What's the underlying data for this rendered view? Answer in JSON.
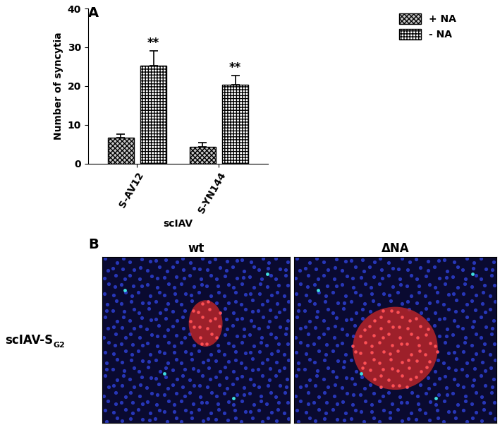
{
  "chart_data": {
    "type": "bar",
    "panel_label": "A",
    "x_label": "scIAV",
    "y_label": "Number of syncytia",
    "categories": [
      "S-AV12",
      "S-YN144"
    ],
    "series": [
      {
        "name": "+ NA",
        "color": "#c8c8c8",
        "values": [
          6.7,
          4.4
        ],
        "errors": [
          0.9,
          1.1
        ]
      },
      {
        "name": "- NA",
        "color": "#ffffff",
        "values": [
          25.3,
          20.3
        ],
        "errors": [
          3.8,
          2.4
        ]
      }
    ],
    "annotations": [
      {
        "text": "**",
        "category": "S-AV12",
        "series": "- NA"
      },
      {
        "text": "**",
        "category": "S-YN144",
        "series": "- NA"
      }
    ],
    "ylim": [
      0,
      40
    ],
    "yticks": [
      0,
      10,
      20,
      30,
      40
    ],
    "legend": "upper right",
    "grid": false
  },
  "images": {
    "panel_label": "B",
    "row_label": {
      "text": "scIAV-S",
      "subscript": "G2"
    },
    "columns": [
      "wt",
      "ΔNA"
    ]
  }
}
